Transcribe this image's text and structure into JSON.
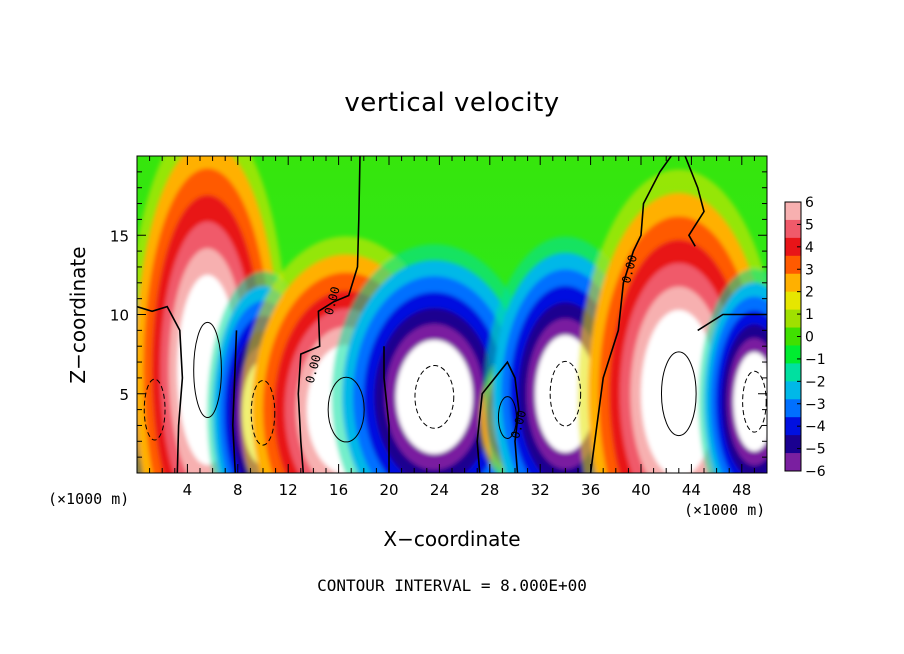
{
  "chart_data": {
    "type": "heatmap",
    "title": "vertical velocity",
    "xlabel": "X−coordinate",
    "ylabel": "Z−coordinate",
    "x_unit": "(×1000 m)",
    "y_unit": "(×1000 m)",
    "xlim": [
      0,
      50
    ],
    "ylim": [
      0,
      20
    ],
    "x_ticks": [
      4,
      8,
      12,
      16,
      20,
      24,
      28,
      32,
      36,
      40,
      44,
      48
    ],
    "y_ticks": [
      5,
      10,
      15
    ],
    "colorbar": {
      "min": -6,
      "max": 6,
      "tick_labels": [
        "6",
        "5",
        "4",
        "3",
        "2",
        "1",
        "0",
        "−1",
        "−2",
        "−3",
        "−4",
        "−5",
        "−6"
      ],
      "colors": [
        "#f7b0b0",
        "#f05a6a",
        "#e81418",
        "#ff5a00",
        "#ffb000",
        "#e6e600",
        "#a0e000",
        "#40e000",
        "#00ec30",
        "#00e0a0",
        "#00b8e8",
        "#0070ff",
        "#0010e0",
        "#1a0090",
        "#7a1fa0"
      ]
    },
    "contour_labels": [
      "0.00",
      "0.00",
      "0.00",
      "0.00"
    ],
    "contour_interval": "CONTOUR INTERVAL = 8.000E+00",
    "cells": [
      {
        "x": 1.4,
        "z": 4.0,
        "w": -7,
        "sx": 1.5,
        "sz": 3.2
      },
      {
        "x": 5.6,
        "z": 6.5,
        "w": 9,
        "sx": 2.0,
        "sz": 5.0
      },
      {
        "x": 10.0,
        "z": 3.8,
        "w": -7,
        "sx": 1.7,
        "sz": 3.4
      },
      {
        "x": 16.6,
        "z": 4.0,
        "w": 9,
        "sx": 2.6,
        "sz": 3.4
      },
      {
        "x": 23.6,
        "z": 4.8,
        "w": -8,
        "sx": 2.8,
        "sz": 3.3
      },
      {
        "x": 29.4,
        "z": 3.5,
        "w": 4,
        "sx": 1.3,
        "sz": 2.2
      },
      {
        "x": 34.0,
        "z": 5.0,
        "w": -8,
        "sx": 2.2,
        "sz": 3.4
      },
      {
        "x": 43.0,
        "z": 5.0,
        "w": 9,
        "sx": 2.5,
        "sz": 4.4
      },
      {
        "x": 49.0,
        "z": 4.5,
        "w": -7,
        "sx": 1.7,
        "sz": 3.2
      }
    ]
  }
}
